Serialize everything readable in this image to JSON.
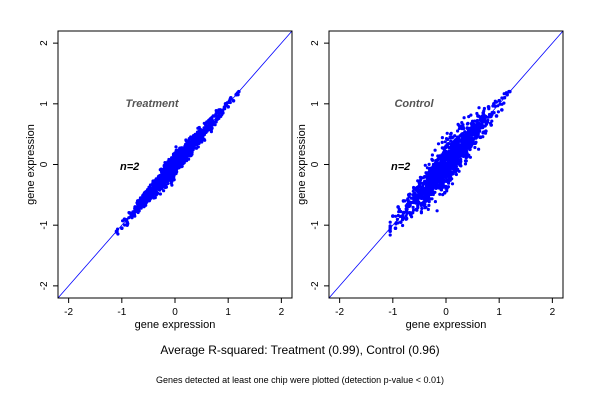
{
  "caption": {
    "main": "Average R-squared: Treatment (0.99), Control (0.96)",
    "sub": "Genes detected at least one chip were plotted (detection p-value < 0.01)"
  },
  "colors": {
    "points": "#0000ff",
    "diagonal": "#0000ff",
    "panel_label": "#555555",
    "n_label": "#000000",
    "frame": "#000000"
  },
  "chart_data": [
    {
      "type": "scatter",
      "title": "Treatment",
      "annotation": "n=2",
      "xlabel": "gene expression",
      "ylabel": "gene expression",
      "xlim": [
        -2.2,
        2.2
      ],
      "ylim": [
        -2.2,
        2.2
      ],
      "xticks": [
        -2,
        -1,
        0,
        1,
        2
      ],
      "yticks": [
        -2,
        -1,
        0,
        1,
        2
      ],
      "grid": false,
      "reference_line": "y = x",
      "point_cloud": {
        "x_range": [
          -1.1,
          1.2
        ],
        "y_range": [
          -1.15,
          1.2
        ],
        "r_squared": 0.99
      },
      "points": [
        [
          -1.1,
          -1.1
        ],
        [
          -1.0,
          -1.05
        ],
        [
          -0.95,
          -0.9
        ],
        [
          -0.9,
          -0.95
        ],
        [
          -0.85,
          -0.8
        ],
        [
          -0.8,
          -0.85
        ],
        [
          -0.75,
          -0.7
        ],
        [
          -0.7,
          -0.75
        ],
        [
          -0.65,
          -0.6
        ],
        [
          -0.6,
          -0.65
        ],
        [
          -0.55,
          -0.5
        ],
        [
          -0.5,
          -0.55
        ],
        [
          -0.45,
          -0.4
        ],
        [
          -0.4,
          -0.45
        ],
        [
          -0.35,
          -0.3
        ],
        [
          -0.3,
          -0.35
        ],
        [
          -0.25,
          -0.2
        ],
        [
          -0.2,
          -0.25
        ],
        [
          -0.15,
          -0.1
        ],
        [
          -0.1,
          -0.15
        ],
        [
          -0.05,
          0.0
        ],
        [
          0.0,
          -0.05
        ],
        [
          0.05,
          0.1
        ],
        [
          0.1,
          0.05
        ],
        [
          0.15,
          0.2
        ],
        [
          0.2,
          0.15
        ],
        [
          0.25,
          0.3
        ],
        [
          0.3,
          0.25
        ],
        [
          0.35,
          0.4
        ],
        [
          0.4,
          0.35
        ],
        [
          0.45,
          0.5
        ],
        [
          0.5,
          0.45
        ],
        [
          0.55,
          0.6
        ],
        [
          0.6,
          0.55
        ],
        [
          0.65,
          0.7
        ],
        [
          0.7,
          0.65
        ],
        [
          0.75,
          0.8
        ],
        [
          0.8,
          0.75
        ],
        [
          0.85,
          0.9
        ],
        [
          0.9,
          0.85
        ],
        [
          0.95,
          1.0
        ],
        [
          1.0,
          0.95
        ],
        [
          1.05,
          1.1
        ],
        [
          1.1,
          1.05
        ],
        [
          1.15,
          1.15
        ],
        [
          1.2,
          1.2
        ],
        [
          -0.7,
          -0.6
        ],
        [
          -0.4,
          -0.55
        ],
        [
          0.0,
          0.1
        ],
        [
          0.3,
          0.15
        ],
        [
          0.6,
          0.7
        ],
        [
          -0.9,
          -1.0
        ],
        [
          -0.2,
          -0.1
        ],
        [
          0.45,
          0.35
        ]
      ]
    },
    {
      "type": "scatter",
      "title": "Control",
      "annotation": "n=2",
      "xlabel": "gene expression",
      "ylabel": "gene expression",
      "xlim": [
        -2.2,
        2.2
      ],
      "ylim": [
        -2.2,
        2.2
      ],
      "xticks": [
        -2,
        -1,
        0,
        1,
        2
      ],
      "yticks": [
        -2,
        -1,
        0,
        1,
        2
      ],
      "grid": false,
      "reference_line": "y = x",
      "point_cloud": {
        "x_range": [
          -1.05,
          1.2
        ],
        "y_range": [
          -1.2,
          1.2
        ],
        "r_squared": 0.96
      },
      "points": [
        [
          -1.05,
          -1.1
        ],
        [
          -1.0,
          -0.85
        ],
        [
          -0.95,
          -1.05
        ],
        [
          -0.9,
          -0.7
        ],
        [
          -0.85,
          -0.95
        ],
        [
          -0.8,
          -0.6
        ],
        [
          -0.75,
          -0.9
        ],
        [
          -0.7,
          -0.5
        ],
        [
          -0.65,
          -0.8
        ],
        [
          -0.6,
          -0.4
        ],
        [
          -0.55,
          -0.75
        ],
        [
          -0.5,
          -0.3
        ],
        [
          -0.45,
          -0.65
        ],
        [
          -0.4,
          -0.2
        ],
        [
          -0.35,
          -0.55
        ],
        [
          -0.3,
          -0.1
        ],
        [
          -0.25,
          -0.45
        ],
        [
          -0.2,
          0.0
        ],
        [
          -0.15,
          -0.35
        ],
        [
          -0.1,
          0.1
        ],
        [
          -0.05,
          -0.25
        ],
        [
          0.0,
          0.2
        ],
        [
          0.05,
          -0.15
        ],
        [
          0.1,
          0.3
        ],
        [
          0.15,
          -0.05
        ],
        [
          0.2,
          0.4
        ],
        [
          0.25,
          0.05
        ],
        [
          0.3,
          0.5
        ],
        [
          0.35,
          0.15
        ],
        [
          0.4,
          0.6
        ],
        [
          0.45,
          0.25
        ],
        [
          0.5,
          0.7
        ],
        [
          0.55,
          0.35
        ],
        [
          0.6,
          0.8
        ],
        [
          0.65,
          0.45
        ],
        [
          0.7,
          0.85
        ],
        [
          0.75,
          0.55
        ],
        [
          0.8,
          0.95
        ],
        [
          0.85,
          0.65
        ],
        [
          0.9,
          1.0
        ],
        [
          0.95,
          0.8
        ],
        [
          1.0,
          1.05
        ],
        [
          1.05,
          0.9
        ],
        [
          1.1,
          1.1
        ],
        [
          1.15,
          1.15
        ],
        [
          1.2,
          1.2
        ],
        [
          -0.6,
          -0.55
        ],
        [
          -0.2,
          -0.2
        ],
        [
          0.2,
          0.2
        ],
        [
          0.6,
          0.6
        ],
        [
          -0.8,
          -0.8
        ],
        [
          0.0,
          0.0
        ],
        [
          0.4,
          0.4
        ],
        [
          -0.4,
          -0.4
        ]
      ]
    }
  ]
}
